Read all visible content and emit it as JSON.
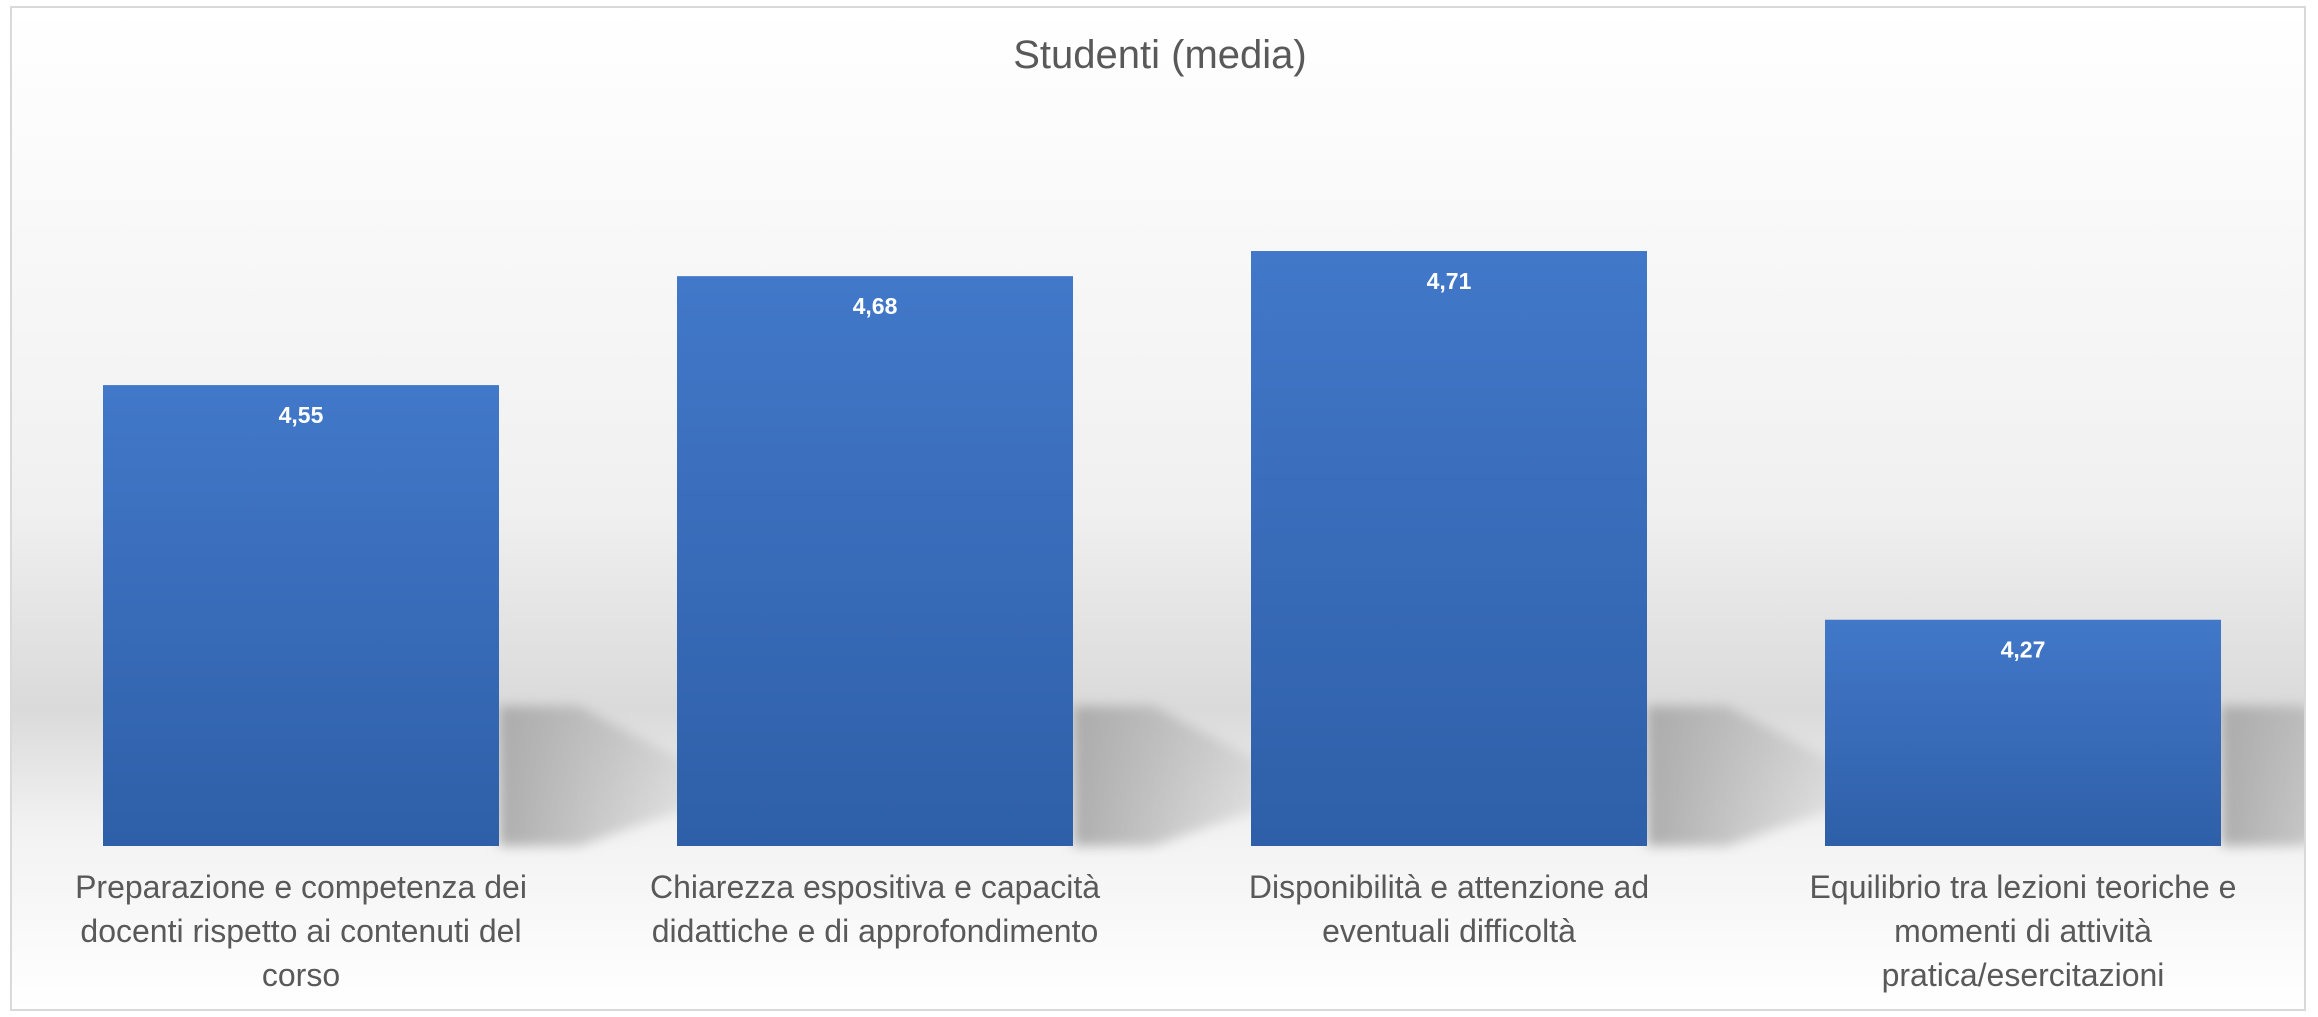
{
  "chart_data": {
    "type": "bar",
    "title": "Studenti (media)",
    "categories": [
      "Preparazione e competenza dei docenti rispetto ai contenuti del corso",
      "Chiarezza espositiva e capacità didattiche e di approfondimento",
      "Disponibilità e attenzione ad eventuali difficoltà",
      "Equilibrio tra lezioni teoriche e momenti di attività pratica/esercitazioni"
    ],
    "category_lines": [
      [
        "Preparazione e competenza dei",
        "docenti rispetto ai contenuti del",
        "corso"
      ],
      [
        "Chiarezza espositiva e capacità",
        "didattiche e di approfondimento"
      ],
      [
        "Disponibilità e attenzione ad",
        "eventuali difficoltà"
      ],
      [
        "Equilibrio tra lezioni teoriche e",
        "momenti di attività",
        "pratica/esercitazioni"
      ]
    ],
    "values": [
      4.55,
      4.68,
      4.71,
      4.27
    ],
    "value_labels": [
      "4,55",
      "4,68",
      "4,71",
      "4,27"
    ],
    "ylim": [
      4,
      5
    ],
    "xlabel": "",
    "ylabel": "",
    "grid": false,
    "legend": "none",
    "bar_color_top": "#4278c9",
    "bar_color_bottom": "#2e5fa8",
    "shadow_color": "#a6a6a6"
  }
}
